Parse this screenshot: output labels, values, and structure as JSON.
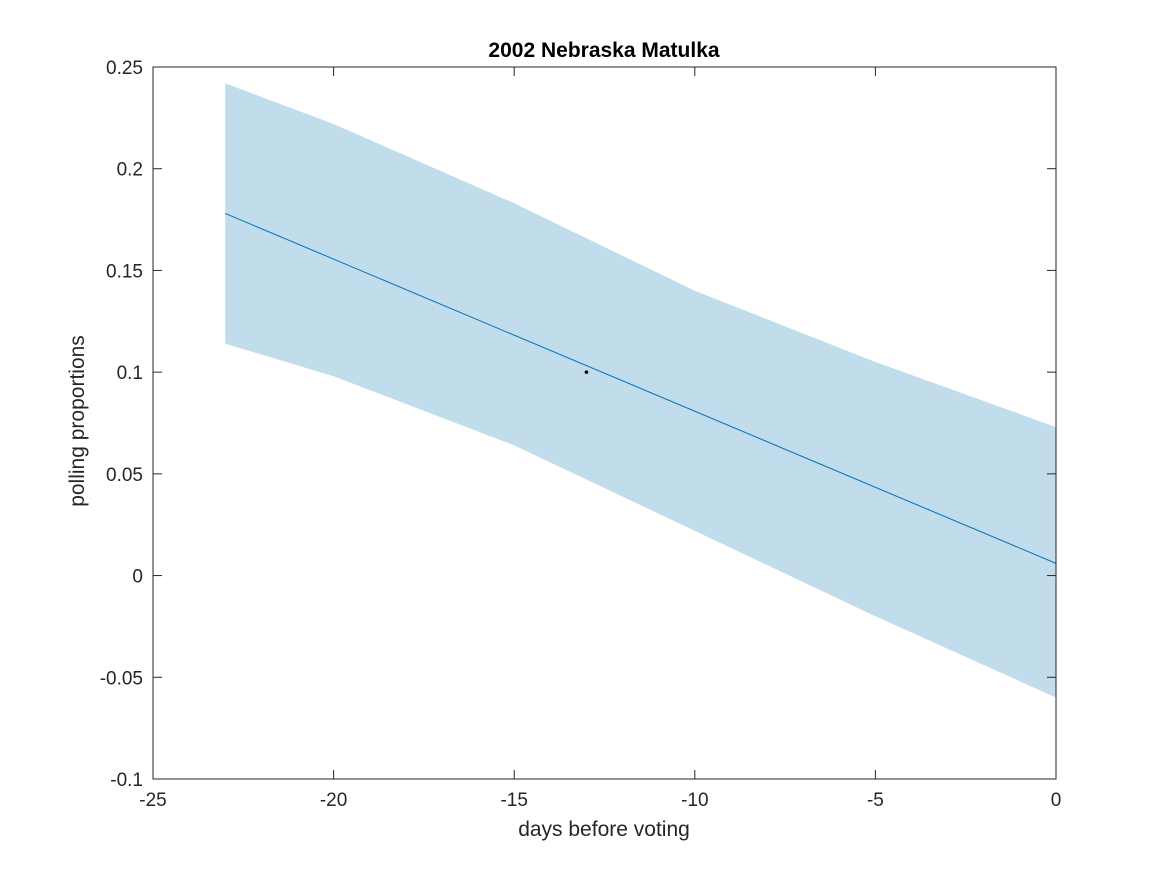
{
  "chart_data": {
    "type": "line",
    "title": "2002 Nebraska Matulka",
    "xlabel": "days before voting",
    "ylabel": "polling proportions",
    "xlim": [
      -25,
      0
    ],
    "ylim": [
      -0.1,
      0.25
    ],
    "xticks": [
      -25,
      -20,
      -15,
      -10,
      -5,
      0
    ],
    "yticks": [
      -0.1,
      -0.05,
      0,
      0.05,
      0.1,
      0.15,
      0.2,
      0.25
    ],
    "xtick_labels": [
      "-25",
      "-20",
      "-15",
      "-10",
      "-5",
      "0"
    ],
    "ytick_labels": [
      "-0.1",
      "-0.05",
      "0",
      "0.05",
      "0.1",
      "0.15",
      "0.2",
      "0.25"
    ],
    "grid": false,
    "series": [
      {
        "type": "line",
        "color": "#0072BD",
        "x": [
          -23,
          0
        ],
        "y": [
          0.178,
          0.006
        ]
      }
    ],
    "band": {
      "color": "#A6CEE3",
      "x": [
        -23,
        -20,
        -15,
        -10,
        -5,
        0
      ],
      "upper": [
        0.242,
        0.222,
        0.183,
        0.14,
        0.105,
        0.073
      ],
      "lower": [
        0.114,
        0.098,
        0.064,
        0.022,
        -0.02,
        -0.06
      ]
    },
    "points": [
      {
        "x": -13,
        "y": 0.1,
        "color": "#000000"
      }
    ]
  }
}
